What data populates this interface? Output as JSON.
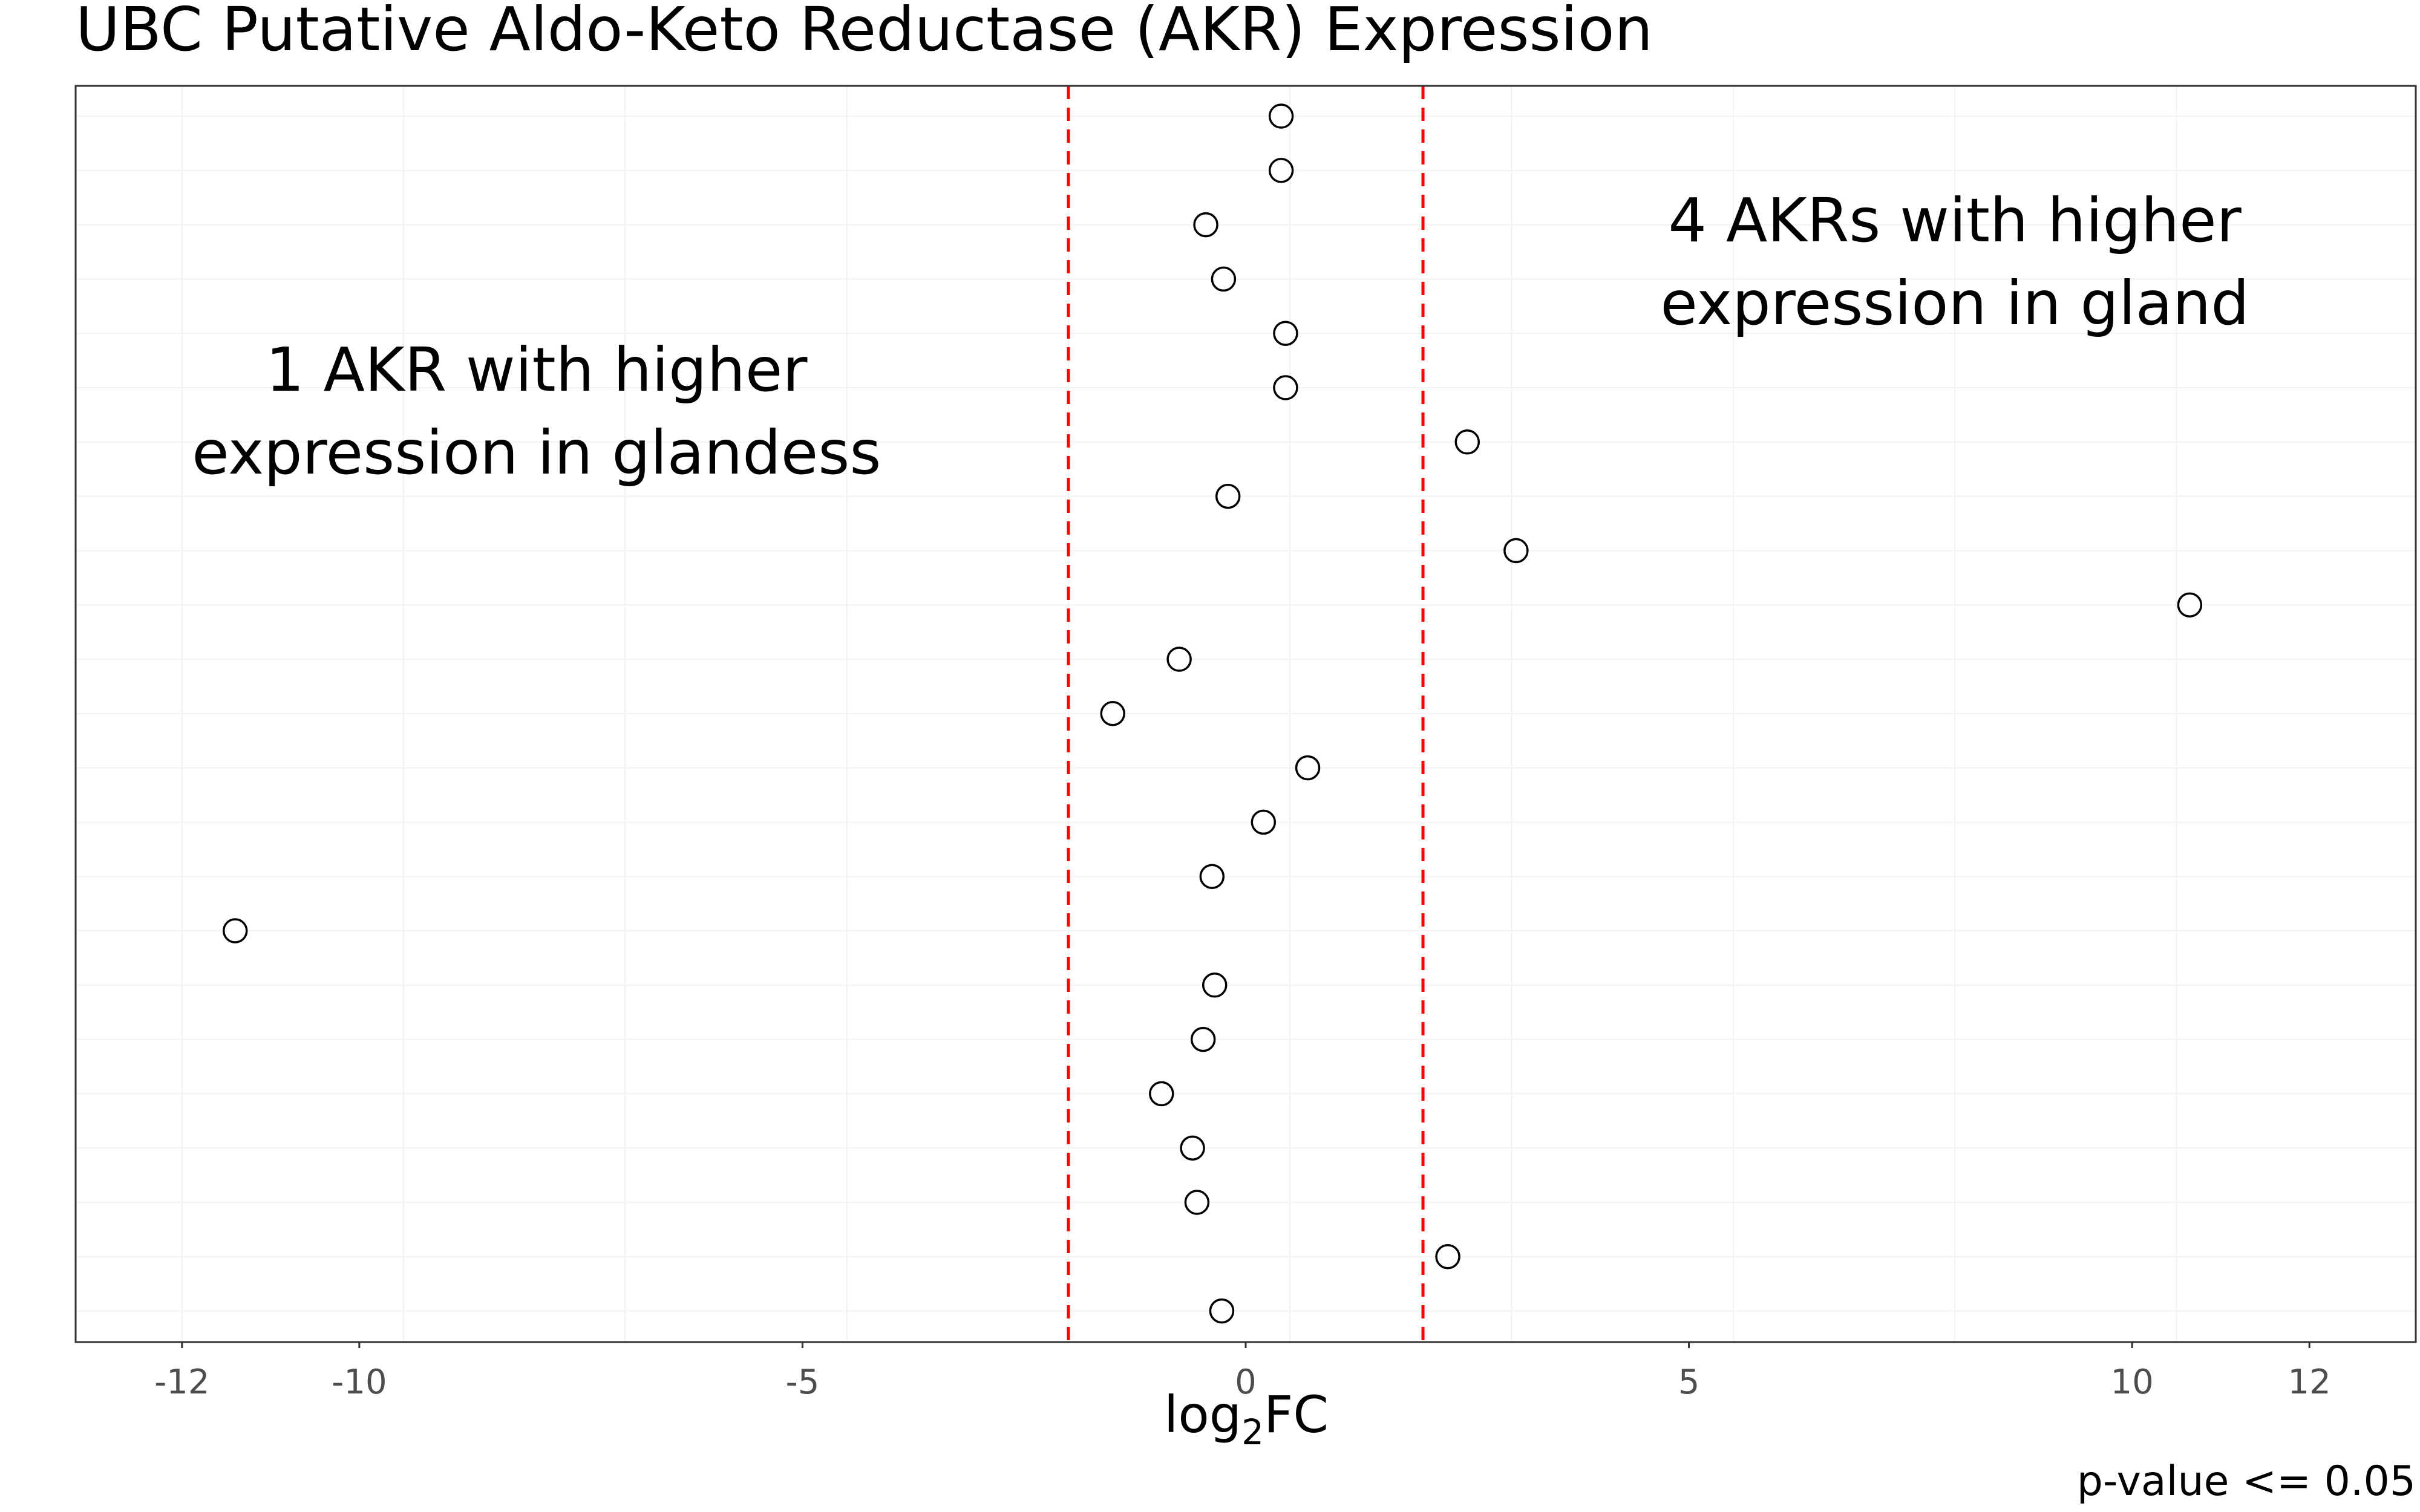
{
  "chart_data": {
    "type": "scatter",
    "title": "UBC Putative Aldo-Keto Reductase (AKR) Expression",
    "xlabel": "log2FC",
    "xlabel_base": "log",
    "xlabel_sub": "2",
    "xlabel_suffix": "FC",
    "ylabel": "",
    "caption": "p-value <= 0.05",
    "xlim": [
      -13.2,
      13.2
    ],
    "x_ticks": [
      -12,
      -10,
      -5,
      0,
      5,
      10,
      12
    ],
    "x_tick_labels": [
      "-12",
      "-10",
      "-5",
      "0",
      "5",
      "10",
      "12"
    ],
    "grid": true,
    "legend": "none",
    "threshold_lines": [
      -2,
      2
    ],
    "threshold_color": "#ff0000",
    "marker": "open-circle",
    "annotations": [
      {
        "id": "left",
        "lines": [
          "1 AKR with higher",
          "expression in glandess"
        ],
        "x": -8,
        "row": 5.5
      },
      {
        "id": "right",
        "lines": [
          "4 AKRs with higher",
          "expression in gland"
        ],
        "x": 8,
        "row": 2.75
      }
    ],
    "points": [
      {
        "x": 0.4
      },
      {
        "x": 0.4
      },
      {
        "x": -0.45
      },
      {
        "x": -0.25
      },
      {
        "x": 0.45
      },
      {
        "x": 0.45
      },
      {
        "x": 2.5
      },
      {
        "x": -0.2
      },
      {
        "x": 3.05
      },
      {
        "x": 10.65
      },
      {
        "x": -0.75
      },
      {
        "x": -1.5
      },
      {
        "x": 0.7
      },
      {
        "x": 0.2
      },
      {
        "x": -0.38
      },
      {
        "x": -11.4
      },
      {
        "x": -0.35
      },
      {
        "x": -0.48
      },
      {
        "x": -0.95
      },
      {
        "x": -0.6
      },
      {
        "x": -0.55
      },
      {
        "x": 2.28
      },
      {
        "x": -0.27
      }
    ]
  }
}
